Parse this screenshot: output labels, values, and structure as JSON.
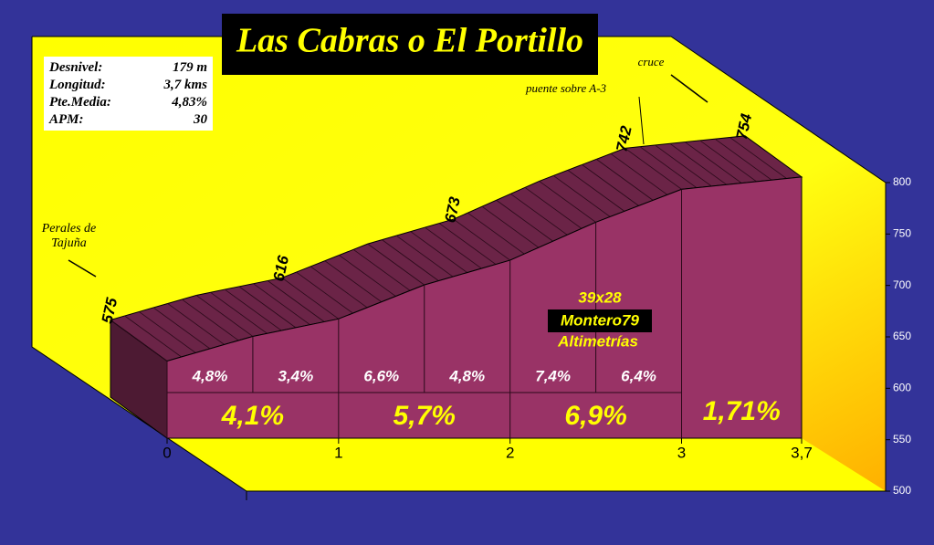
{
  "chart_data": {
    "type": "profile",
    "title": "Las Cabras o El Portillo",
    "stats": [
      {
        "label": "Desnivel:",
        "value": "179 m"
      },
      {
        "label": "Longitud:",
        "value": "3,7 kms"
      },
      {
        "label": "Pte.Media:",
        "value": "4,83%"
      },
      {
        "label": "APM:",
        "value": "30"
      }
    ],
    "x": [
      0,
      0.5,
      1,
      1.5,
      2,
      2.5,
      3,
      3.7
    ],
    "values": [
      575,
      599,
      616,
      649,
      673,
      710,
      742,
      754
    ],
    "xlim": [
      0,
      3.7
    ],
    "xticks": [
      0,
      1,
      2,
      3,
      {
        "value": 3.7,
        "label": "3,7"
      }
    ],
    "ylim": [
      500,
      800
    ],
    "yticks": [
      500,
      550,
      600,
      650,
      700,
      750,
      800
    ],
    "half_km_gradients": {
      "values": [
        4.8,
        3.4,
        6.6,
        4.8,
        7.4,
        6.4
      ],
      "value_labels": [
        "4,8%",
        "3,4%",
        "6,6%",
        "4,8%",
        "7,4%",
        "6,4%"
      ]
    },
    "km_gradients": {
      "values": [
        4.1,
        5.7,
        6.9,
        1.71
      ],
      "value_labels": [
        "4,1%",
        "5,7%",
        "6,9%",
        "1,71%"
      ]
    },
    "annotations": [
      "Perales de Tajuña",
      "puente sobre A-3",
      "cruce"
    ],
    "credits": [
      "39x28",
      "Montero79",
      "Altimetrías"
    ],
    "color": "#993366"
  }
}
